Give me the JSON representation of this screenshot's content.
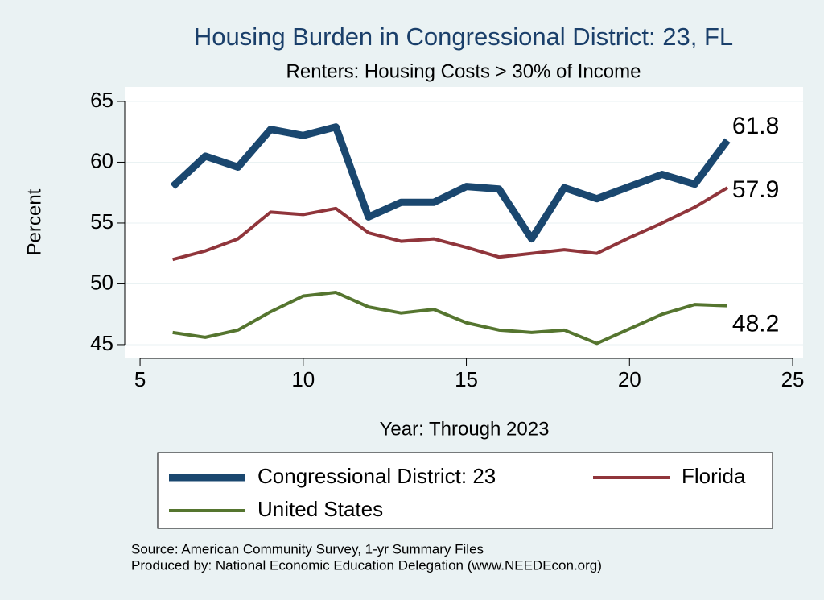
{
  "chart_data": {
    "type": "line",
    "title": "Housing Burden in Congressional District:  23, FL",
    "subtitle": "Renters: Housing Costs > 30% of Income",
    "xlabel": "Year: Through 2023",
    "ylabel": "Percent",
    "x": [
      6,
      7,
      8,
      9,
      10,
      11,
      12,
      13,
      14,
      15,
      16,
      17,
      18,
      19,
      20,
      21,
      22,
      23
    ],
    "series": [
      {
        "name": "Congressional District:  23",
        "color": "#1a476f",
        "values": [
          58.0,
          60.5,
          59.6,
          62.7,
          62.2,
          62.9,
          55.5,
          56.7,
          56.7,
          58.0,
          57.8,
          53.7,
          57.9,
          57.0,
          58.0,
          59.0,
          58.2,
          61.8
        ]
      },
      {
        "name": "Florida",
        "color": "#90353b",
        "values": [
          52.0,
          52.7,
          53.7,
          55.9,
          55.7,
          56.2,
          54.2,
          53.5,
          53.7,
          53.0,
          52.2,
          52.5,
          52.8,
          52.5,
          53.8,
          55.0,
          56.3,
          57.9
        ]
      },
      {
        "name": "United States",
        "color": "#55752f",
        "values": [
          46.0,
          45.6,
          46.2,
          47.7,
          49.0,
          49.3,
          48.1,
          47.6,
          47.9,
          46.8,
          46.2,
          46.0,
          46.2,
          45.1,
          46.3,
          47.5,
          48.3,
          48.2
        ]
      }
    ],
    "xlim": [
      4.53,
      25.32
    ],
    "xticks": [
      5,
      10,
      15,
      20,
      25
    ],
    "ylim": [
      43.87,
      66.19
    ],
    "yticks": [
      45,
      50,
      55,
      60,
      65
    ],
    "grid": true,
    "notes": [
      "Source: American Community Survey, 1-yr Summary Files",
      "Produced by: National Economic Education Delegation (www.NEEDEcon.org)"
    ]
  }
}
